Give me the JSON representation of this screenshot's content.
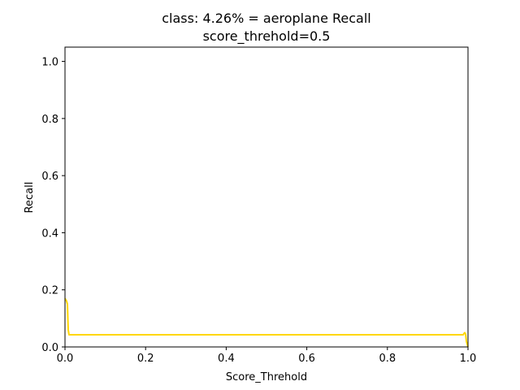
{
  "chart_data": {
    "type": "line",
    "title_line1": "class: 4.26% = aeroplane Recall",
    "title_line2": "score_threhold=0.5",
    "xlabel": "Score_Threhold",
    "ylabel": "Recall",
    "xlim": [
      0,
      1
    ],
    "ylim": [
      0,
      1.05
    ],
    "xticks": [
      {
        "v": 0.0,
        "label": "0.0"
      },
      {
        "v": 0.2,
        "label": "0.2"
      },
      {
        "v": 0.4,
        "label": "0.4"
      },
      {
        "v": 0.6,
        "label": "0.6"
      },
      {
        "v": 0.8,
        "label": "0.8"
      },
      {
        "v": 1.0,
        "label": "1.0"
      }
    ],
    "yticks": [
      {
        "v": 0.0,
        "label": "0.0"
      },
      {
        "v": 0.2,
        "label": "0.2"
      },
      {
        "v": 0.4,
        "label": "0.4"
      },
      {
        "v": 0.6,
        "label": "0.6"
      },
      {
        "v": 0.8,
        "label": "0.8"
      },
      {
        "v": 1.0,
        "label": "1.0"
      }
    ],
    "grid": false,
    "series": [
      {
        "name": "Recall",
        "color": "#ffd700",
        "x": [
          0.0,
          0.002,
          0.004,
          0.006,
          0.008,
          0.01,
          0.5,
          0.988,
          0.99,
          0.992,
          0.994,
          0.996,
          1.0
        ],
        "y": [
          0.17,
          0.165,
          0.16,
          0.15,
          0.06,
          0.0426,
          0.0426,
          0.0426,
          0.047,
          0.05,
          0.045,
          0.02,
          0.0
        ]
      }
    ]
  }
}
